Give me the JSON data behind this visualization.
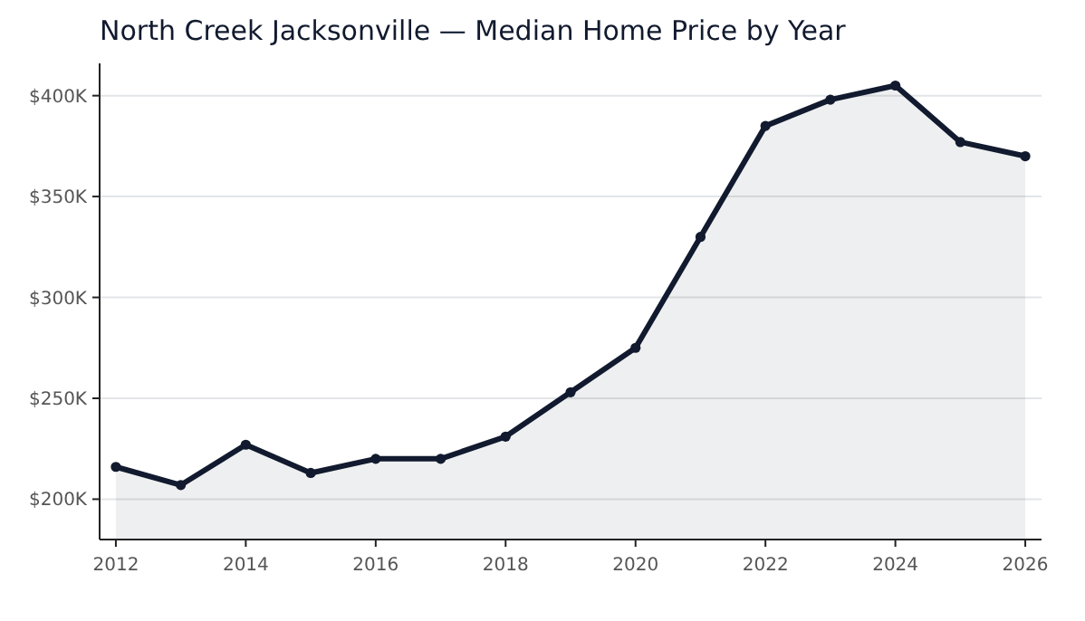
{
  "chart_data": {
    "type": "area",
    "title": "North Creek Jacksonville — Median Home Price by Year",
    "x": [
      2012,
      2013,
      2014,
      2015,
      2016,
      2017,
      2018,
      2019,
      2020,
      2021,
      2022,
      2023,
      2024,
      2025,
      2026
    ],
    "series": [
      {
        "color": "#111a2e",
        "values": [
          216000,
          207000,
          227000,
          213000,
          220000,
          220000,
          231000,
          253000,
          275000,
          330000,
          385000,
          398000,
          405000,
          377000,
          370000
        ]
      }
    ],
    "xlim": [
      2011.75,
      2026.25
    ],
    "xticks": [
      2012,
      2014,
      2016,
      2018,
      2020,
      2022,
      2024,
      2026
    ],
    "ylim": [
      180000,
      416000
    ],
    "yticks": [
      {
        "value": 200000,
        "label": "$200K"
      },
      {
        "value": 250000,
        "label": "$250K"
      },
      {
        "value": 300000,
        "label": "$300K"
      },
      {
        "value": 350000,
        "label": "$350K"
      },
      {
        "value": 400000,
        "label": "$400K"
      }
    ],
    "grid": "y",
    "marker": "circle",
    "line_style": "solid"
  }
}
